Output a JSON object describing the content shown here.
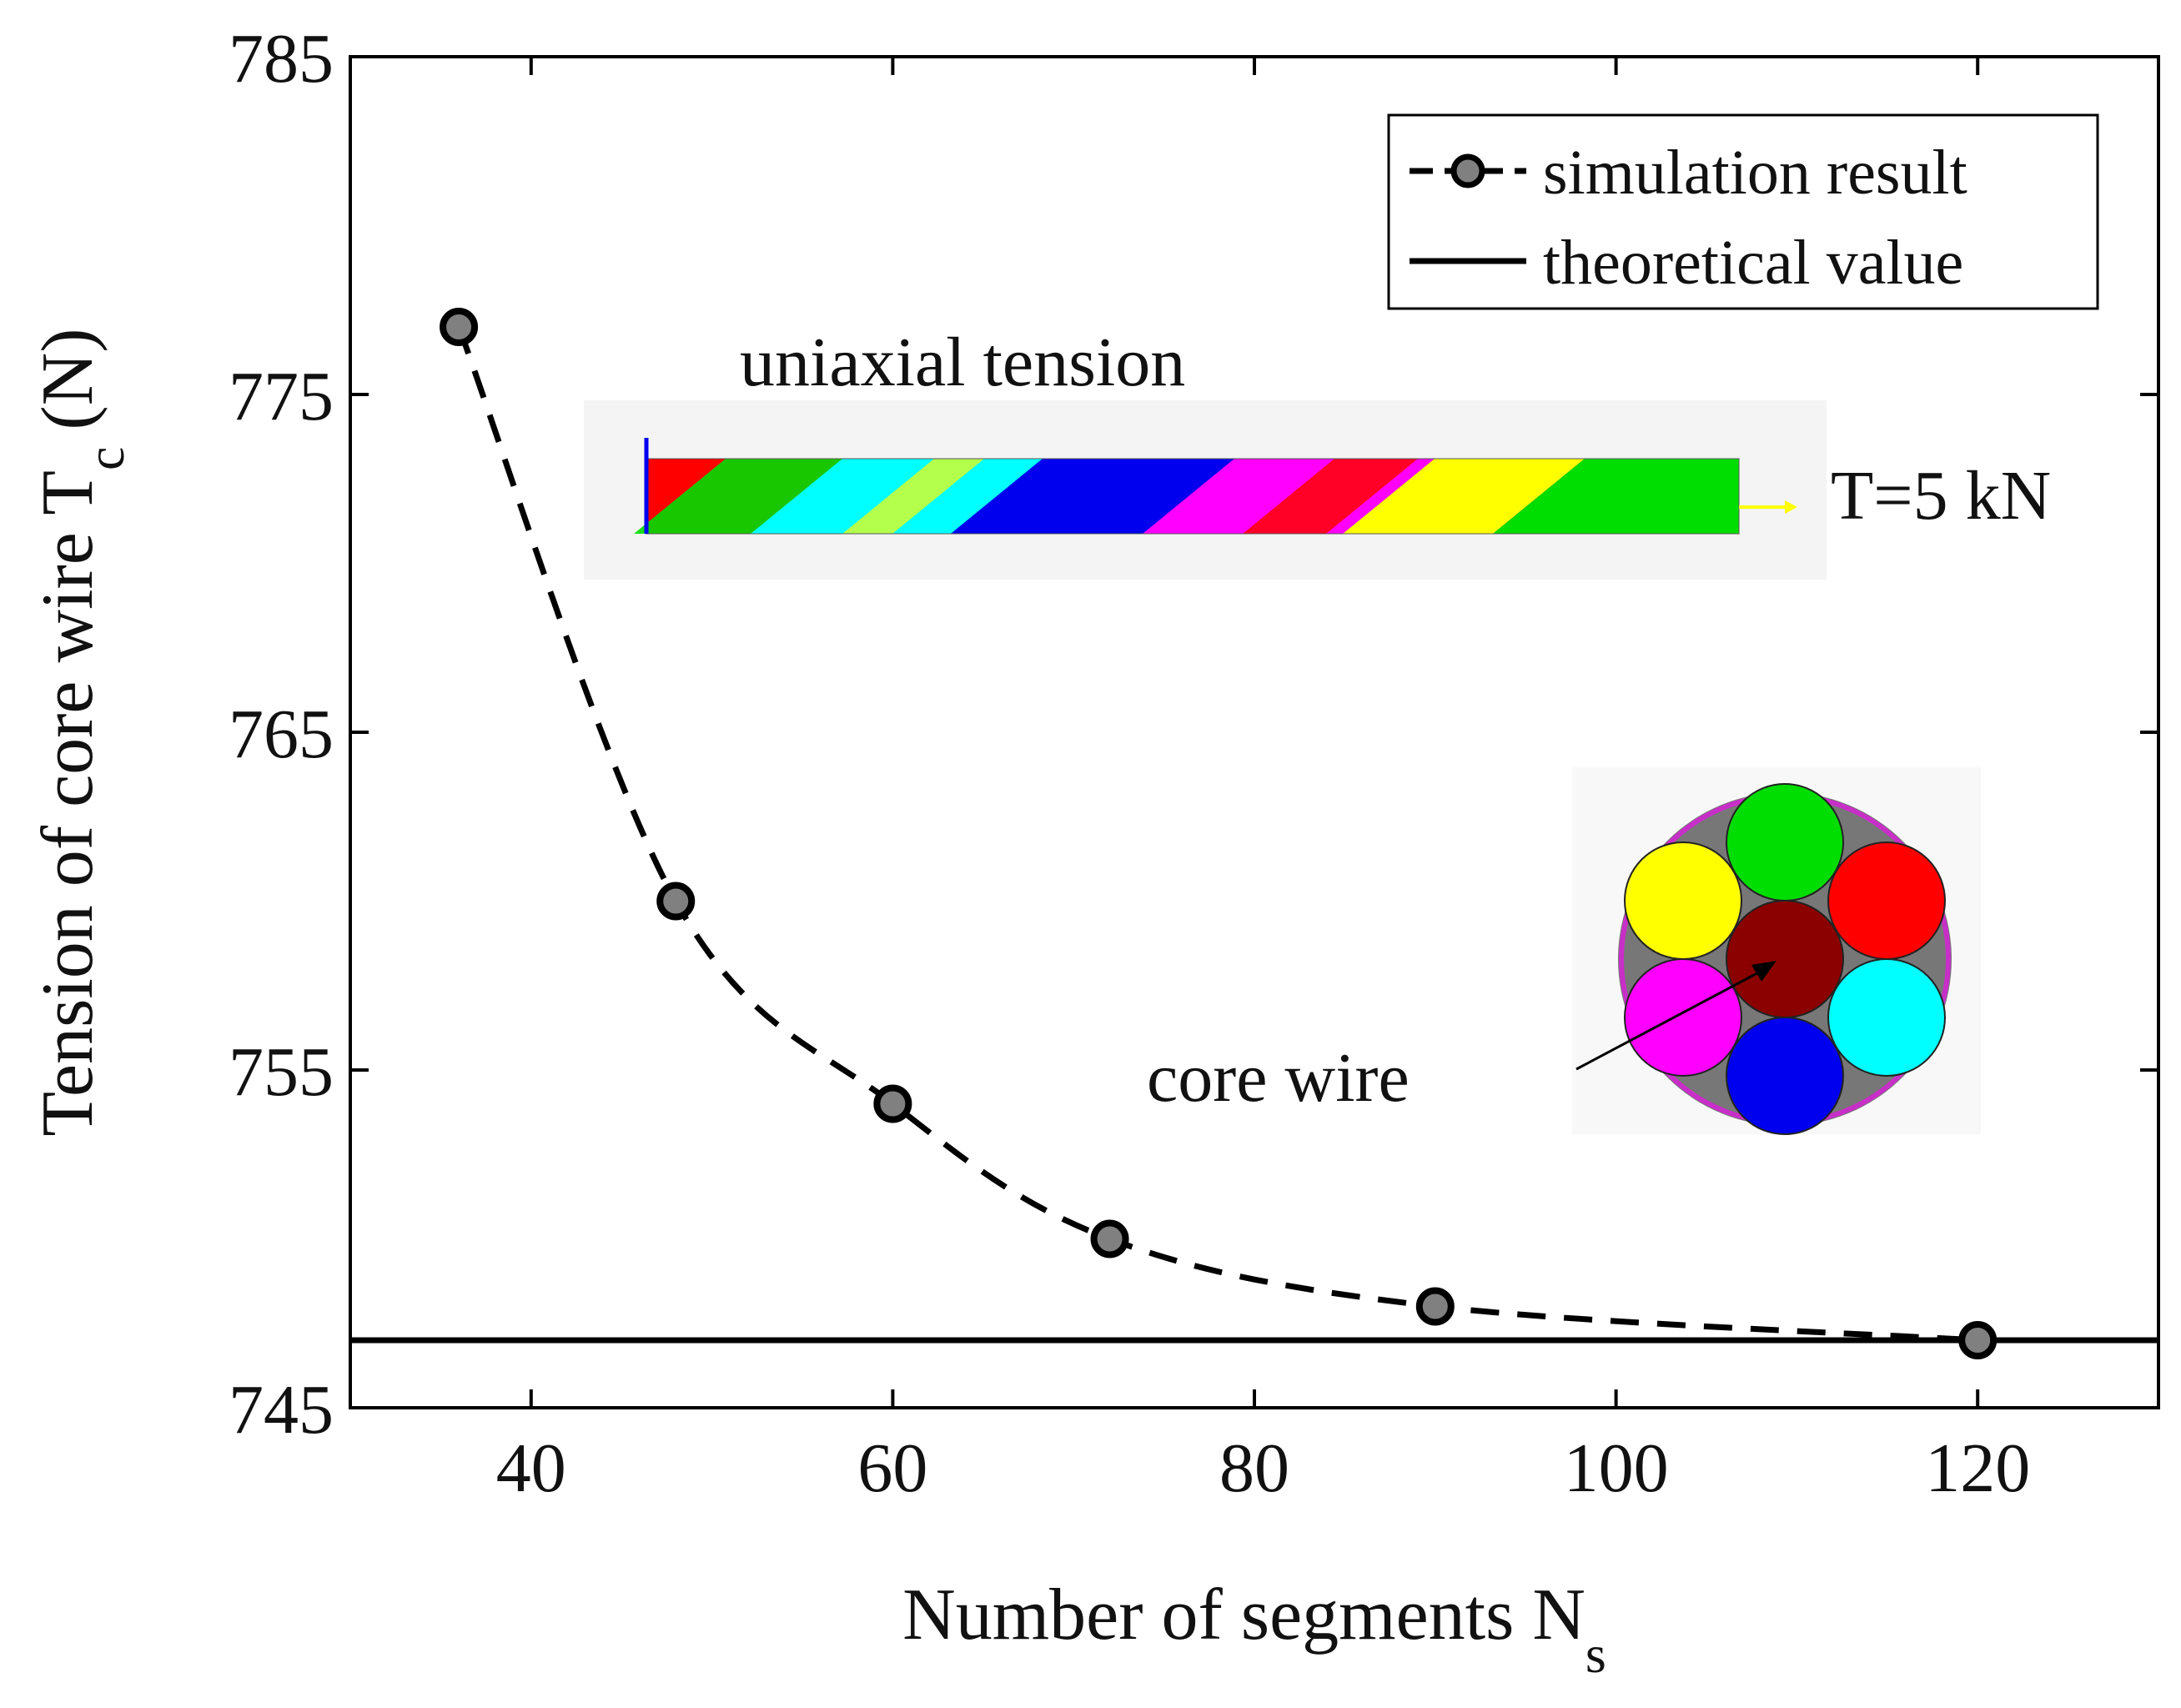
{
  "chart_data": {
    "type": "line",
    "xlabel": "Number of segments N",
    "xlabel_sub": "s",
    "ylabel": "Tension of core wire T",
    "ylabel_sub": "c",
    "ylabel_unit": "(N)",
    "xlim": [
      30,
      130
    ],
    "ylim": [
      745,
      785
    ],
    "xticks": [
      40,
      60,
      80,
      100,
      120
    ],
    "yticks": [
      745,
      755,
      765,
      775,
      785
    ],
    "grid": false,
    "legend_position": "top-right",
    "series": [
      {
        "name": "simulation result",
        "style": "dashed-with-circle-markers",
        "color": "#000000",
        "marker_color": "#808080",
        "x": [
          36,
          48,
          60,
          72,
          90,
          120
        ],
        "y": [
          777.0,
          760.0,
          754.0,
          750.0,
          748.0,
          747.0
        ]
      },
      {
        "name": "theoretical value",
        "style": "solid",
        "color": "#000000",
        "x": [
          30,
          130
        ],
        "y": [
          747.0,
          747.0
        ]
      }
    ],
    "annotations": [
      "uniaxial tension",
      "T=5 kN",
      "core wire"
    ],
    "strand_colors": [
      "#ff0000",
      "#00dd00",
      "#ffff00",
      "#0000ee",
      "#00ffff",
      "#ff00ff"
    ],
    "core_color": "#8b0000"
  }
}
